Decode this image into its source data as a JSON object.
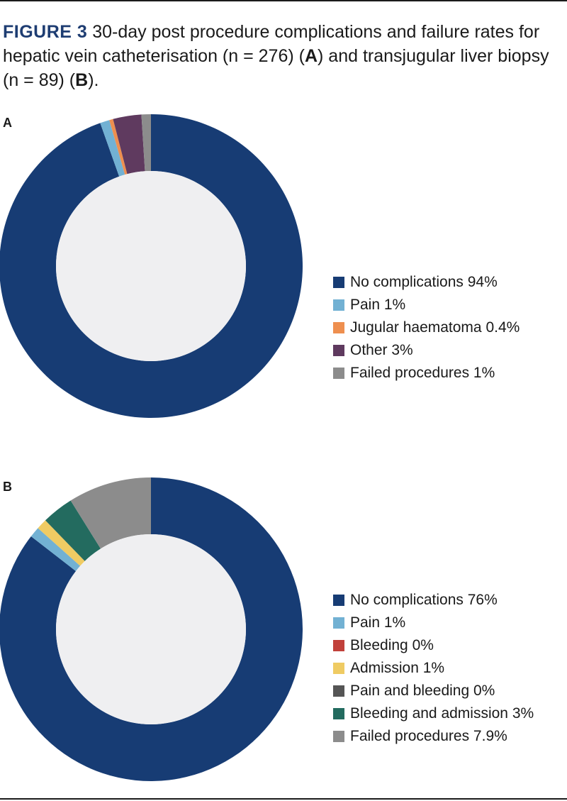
{
  "caption": {
    "figure_label": "FIGURE 3",
    "text_1": " 30-day post procedure complications and failure rates for hepatic vein catheterisation (n = 276) (",
    "panel_a_ref": "A",
    "text_2": ") and transjugular liver biopsy (n = 89) (",
    "panel_b_ref": "B",
    "text_3": ")."
  },
  "chart_data": [
    {
      "type": "pie",
      "panel_label": "A",
      "donut": true,
      "slices": [
        {
          "label": "No complications 94%",
          "value": 94,
          "color": "#173c74"
        },
        {
          "label": "Pain 1%",
          "value": 1,
          "color": "#72b1d3"
        },
        {
          "label": "Jugular haematoma 0.4%",
          "value": 0.4,
          "color": "#ee8f4f"
        },
        {
          "label": "Other 3%",
          "value": 3,
          "color": "#5f3a5f"
        },
        {
          "label": "Failed procedures 1%",
          "value": 1,
          "color": "#8c8c8c"
        }
      ]
    },
    {
      "type": "pie",
      "panel_label": "B",
      "donut": true,
      "slices": [
        {
          "label": "No complications 76%",
          "value": 76,
          "color": "#173c74"
        },
        {
          "label": "Pain 1%",
          "value": 1,
          "color": "#72b1d3"
        },
        {
          "label": "Bleeding 0%",
          "value": 0,
          "color": "#c1413b"
        },
        {
          "label": "Admission 1%",
          "value": 1,
          "color": "#efcb63"
        },
        {
          "label": "Pain and bleeding 0%",
          "value": 0,
          "color": "#555555"
        },
        {
          "label": "Bleeding and admission 3%",
          "value": 3,
          "color": "#236b5f"
        },
        {
          "label": "Failed procedures 7.9%",
          "value": 7.9,
          "color": "#8c8c8c"
        }
      ]
    }
  ],
  "colors": {
    "accent": "#1e3d72",
    "donut_hole": "#efeff1"
  }
}
